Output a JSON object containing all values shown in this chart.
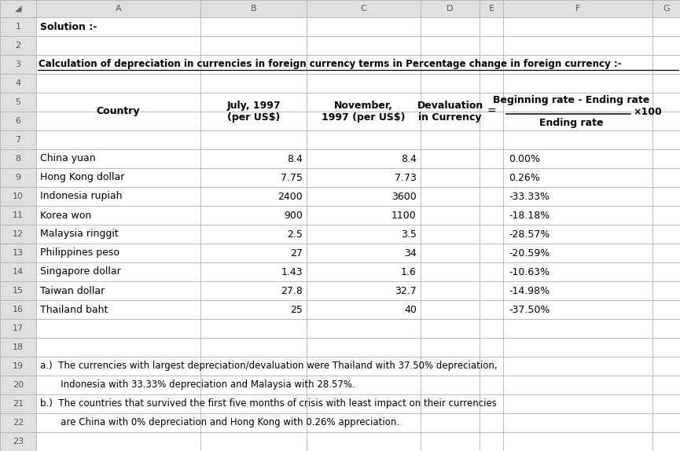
{
  "title_row1": "Solution :-",
  "title_row3": "Calculation of depreciation in currencies in foreign currency terms in Percentage change in foreign currency :-",
  "data": [
    [
      "China yuan",
      "8.4",
      "8.4",
      "0.00%"
    ],
    [
      "Hong Kong dollar",
      "7.75",
      "7.73",
      "0.26%"
    ],
    [
      "Indonesia rupiah",
      "2400",
      "3600",
      "-33.33%"
    ],
    [
      "Korea won",
      "900",
      "1100",
      "-18.18%"
    ],
    [
      "Malaysia ringgit",
      "2.5",
      "3.5",
      "-28.57%"
    ],
    [
      "Philippines peso",
      "27",
      "34",
      "-20.59%"
    ],
    [
      "Singapore dollar",
      "1.43",
      "1.6",
      "-10.63%"
    ],
    [
      "Taiwan dollar",
      "27.8",
      "32.7",
      "-14.98%"
    ],
    [
      "Thailand baht",
      "25",
      "40",
      "-37.50%"
    ]
  ],
  "note_a": "a.)  The currencies with largest depreciation/devaluation were Thailand with 37.50% depreciation,",
  "note_a2": "       Indonesia with 33.33% depreciation and Malaysia with 28.57%.",
  "note_b": "b.)  The countries that survived the first five months of crisis with least impact on their currencies",
  "note_b2": "       are China with 0% depreciation and Hong Kong with 0.26% appreciation.",
  "col_letters": [
    "A",
    "B",
    "C",
    "D",
    "E",
    "F",
    "G"
  ],
  "bg_color": "#f2f2f2",
  "cell_bg": "#ffffff",
  "grid_color": "#b0b0b0",
  "hdr_bg": "#e0e0e0",
  "font_size": 9.0,
  "font_size_small": 8.0,
  "font_size_notes": 8.5
}
